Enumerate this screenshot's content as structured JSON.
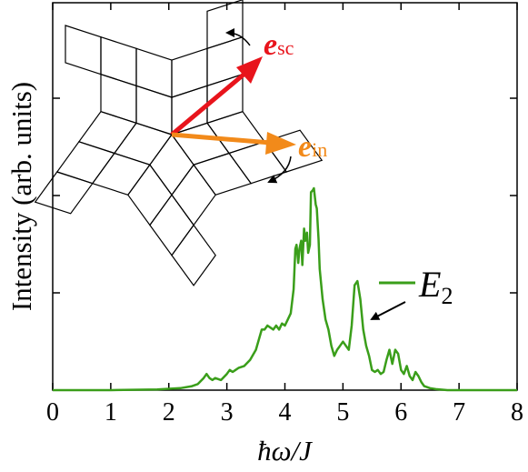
{
  "chart_data": {
    "type": "line",
    "xlabel": "ħω/J",
    "ylabel": "Intensity (arb. units)",
    "xlim": [
      0,
      8
    ],
    "ylim": [
      0,
      1.0
    ],
    "x_ticks": [
      "0",
      "1",
      "2",
      "3",
      "4",
      "5",
      "6",
      "7",
      "8"
    ],
    "grid": false,
    "legend_placement": "right",
    "series": [
      {
        "name": "E2",
        "color": "#3a9e1a",
        "x": [
          0.0,
          1.0,
          1.8,
          2.2,
          2.4,
          2.5,
          2.6,
          2.65,
          2.7,
          2.75,
          2.8,
          2.9,
          3.0,
          3.05,
          3.1,
          3.15,
          3.2,
          3.3,
          3.4,
          3.5,
          3.55,
          3.6,
          3.65,
          3.7,
          3.75,
          3.8,
          3.85,
          3.9,
          3.95,
          4.0,
          4.05,
          4.1,
          4.15,
          4.18,
          4.2,
          4.23,
          4.25,
          4.28,
          4.3,
          4.33,
          4.35,
          4.38,
          4.4,
          4.43,
          4.45,
          4.48,
          4.5,
          4.53,
          4.55,
          4.58,
          4.6,
          4.65,
          4.7,
          4.75,
          4.8,
          4.85,
          4.9,
          4.95,
          5.0,
          5.05,
          5.1,
          5.15,
          5.2,
          5.25,
          5.3,
          5.35,
          5.4,
          5.45,
          5.5,
          5.55,
          5.6,
          5.65,
          5.7,
          5.75,
          5.8,
          5.85,
          5.9,
          5.95,
          6.0,
          6.05,
          6.1,
          6.15,
          6.2,
          6.25,
          6.3,
          6.35,
          6.4,
          6.5,
          6.6,
          6.8,
          7.0,
          8.0
        ],
        "values": [
          0.0,
          0.0,
          0.003,
          0.01,
          0.02,
          0.03,
          0.06,
          0.08,
          0.06,
          0.05,
          0.06,
          0.05,
          0.08,
          0.1,
          0.09,
          0.1,
          0.11,
          0.12,
          0.15,
          0.2,
          0.25,
          0.3,
          0.3,
          0.32,
          0.31,
          0.3,
          0.32,
          0.3,
          0.33,
          0.32,
          0.35,
          0.38,
          0.5,
          0.7,
          0.72,
          0.63,
          0.7,
          0.74,
          0.62,
          0.8,
          0.74,
          0.78,
          0.68,
          0.72,
          0.98,
          0.99,
          1.0,
          0.92,
          0.9,
          0.75,
          0.6,
          0.45,
          0.35,
          0.3,
          0.22,
          0.17,
          0.2,
          0.22,
          0.24,
          0.22,
          0.2,
          0.32,
          0.52,
          0.54,
          0.45,
          0.3,
          0.22,
          0.17,
          0.1,
          0.09,
          0.1,
          0.08,
          0.09,
          0.15,
          0.2,
          0.13,
          0.2,
          0.18,
          0.1,
          0.08,
          0.12,
          0.07,
          0.05,
          0.09,
          0.07,
          0.04,
          0.02,
          0.01,
          0.005,
          0.0,
          0.0,
          0.0
        ]
      }
    ],
    "legend": {
      "label": "E",
      "subscript": "2"
    },
    "inset": {
      "vectors": [
        {
          "label": "e",
          "subscript": "sc",
          "color": "#e8141c"
        },
        {
          "label": "e",
          "subscript": "in",
          "color": "#f28a1a"
        }
      ]
    }
  }
}
